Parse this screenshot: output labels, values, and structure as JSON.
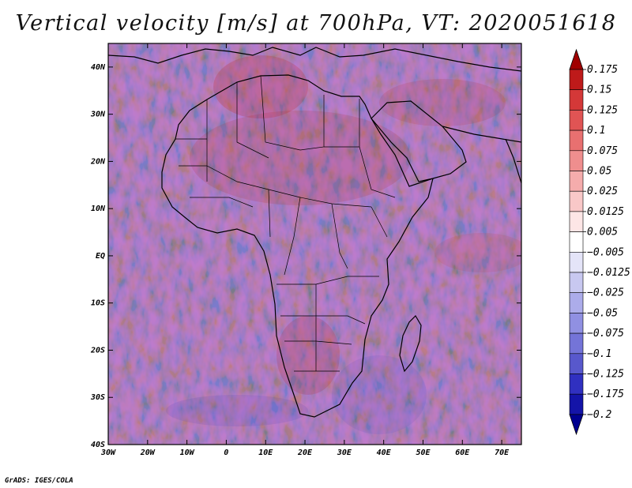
{
  "title": "Vertical velocity [m/s] at 700hPa, VT: 2020051618",
  "credit": "GrADS: IGES/COLA",
  "map": {
    "lon_range": [
      -30,
      75
    ],
    "lat_range": [
      -40,
      45
    ],
    "lon_ticks": [
      "30W",
      "20W",
      "10W",
      "0",
      "10E",
      "20E",
      "30E",
      "40E",
      "50E",
      "60E",
      "70E"
    ],
    "lat_ticks": [
      "40N",
      "30N",
      "20N",
      "10N",
      "EQ",
      "10S",
      "20S",
      "30S",
      "40S"
    ]
  },
  "colorbar": {
    "labels": [
      "0.175",
      "0.15",
      "0.125",
      "0.1",
      "0.075",
      "0.05",
      "0.025",
      "0.0125",
      "0.005",
      "−0.005",
      "−0.0125",
      "−0.025",
      "−0.05",
      "−0.075",
      "−0.1",
      "−0.125",
      "−0.175",
      "−0.2"
    ],
    "colors": [
      "#a00000",
      "#be1a1a",
      "#d43838",
      "#e05454",
      "#e87070",
      "#ef8e8e",
      "#f5acac",
      "#f9c8c8",
      "#fde6e6",
      "#ffffff",
      "#e4e4f8",
      "#c8c8f0",
      "#acacea",
      "#9090e2",
      "#7474d8",
      "#5858cc",
      "#3030c0",
      "#1414a8",
      "#000090"
    ]
  }
}
